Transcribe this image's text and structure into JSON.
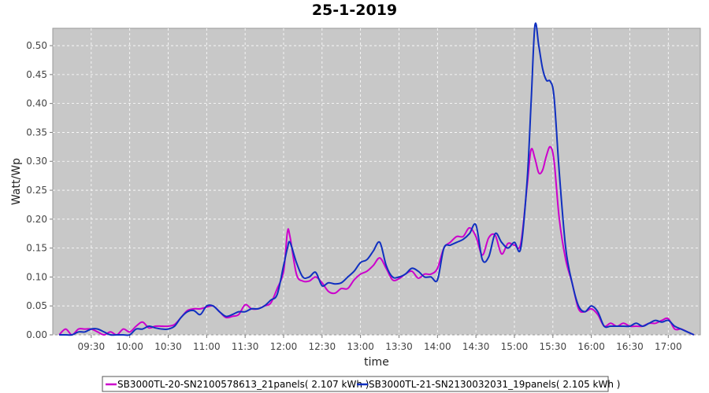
{
  "chart_data": {
    "type": "line",
    "title": "25-1-2019",
    "xlabel": "time",
    "ylabel": "Watt/Wp",
    "xlim": [
      "09:00",
      "17:25"
    ],
    "ylim": [
      0,
      0.53
    ],
    "x_ticks": [
      "09:30",
      "10:00",
      "10:30",
      "11:00",
      "11:30",
      "12:00",
      "12:30",
      "13:00",
      "13:30",
      "14:00",
      "14:30",
      "15:00",
      "15:30",
      "16:00",
      "16:30",
      "17:00"
    ],
    "y_ticks": [
      "0.00",
      "0.05",
      "0.10",
      "0.15",
      "0.20",
      "0.25",
      "0.30",
      "0.35",
      "0.40",
      "0.45",
      "0.50"
    ],
    "grid": true,
    "legend_position": "bottom",
    "series": [
      {
        "name": "SB3000TL-20-SN2100578613_21panels( 2.107 kWh )",
        "color": "#cc00cc",
        "x": [
          "09:05",
          "09:10",
          "09:15",
          "09:20",
          "09:25",
          "09:30",
          "09:35",
          "09:40",
          "09:45",
          "09:50",
          "09:55",
          "10:00",
          "10:05",
          "10:10",
          "10:15",
          "10:20",
          "10:25",
          "10:30",
          "10:35",
          "10:40",
          "10:45",
          "10:50",
          "10:55",
          "11:00",
          "11:05",
          "11:10",
          "11:15",
          "11:20",
          "11:25",
          "11:30",
          "11:35",
          "11:40",
          "11:45",
          "11:50",
          "11:55",
          "12:00",
          "12:03",
          "12:05",
          "12:10",
          "12:15",
          "12:20",
          "12:25",
          "12:30",
          "12:35",
          "12:40",
          "12:45",
          "12:50",
          "12:55",
          "13:00",
          "13:05",
          "13:10",
          "13:15",
          "13:20",
          "13:25",
          "13:30",
          "13:35",
          "13:40",
          "13:45",
          "13:50",
          "13:55",
          "14:00",
          "14:05",
          "14:10",
          "14:15",
          "14:20",
          "14:25",
          "14:30",
          "14:35",
          "14:40",
          "14:45",
          "14:50",
          "14:55",
          "15:00",
          "15:05",
          "15:10",
          "15:13",
          "15:16",
          "15:19",
          "15:22",
          "15:25",
          "15:28",
          "15:31",
          "15:35",
          "15:40",
          "15:45",
          "15:50",
          "15:55",
          "16:00",
          "16:05",
          "16:10",
          "16:15",
          "16:20",
          "16:25",
          "16:30",
          "16:35",
          "16:40",
          "16:45",
          "16:50",
          "16:55",
          "17:00",
          "17:05",
          "17:10",
          "17:15",
          "17:20"
        ],
        "values": [
          0.0,
          0.01,
          0.0,
          0.01,
          0.01,
          0.01,
          0.005,
          0.0,
          0.005,
          0.0,
          0.01,
          0.005,
          0.015,
          0.022,
          0.012,
          0.015,
          0.015,
          0.015,
          0.018,
          0.03,
          0.042,
          0.045,
          0.045,
          0.048,
          0.05,
          0.04,
          0.03,
          0.032,
          0.035,
          0.052,
          0.045,
          0.045,
          0.05,
          0.055,
          0.08,
          0.11,
          0.178,
          0.17,
          0.105,
          0.093,
          0.093,
          0.1,
          0.09,
          0.075,
          0.072,
          0.08,
          0.08,
          0.095,
          0.105,
          0.11,
          0.12,
          0.133,
          0.115,
          0.095,
          0.097,
          0.105,
          0.11,
          0.098,
          0.105,
          0.105,
          0.115,
          0.15,
          0.16,
          0.17,
          0.17,
          0.185,
          0.17,
          0.138,
          0.168,
          0.172,
          0.14,
          0.158,
          0.155,
          0.158,
          0.26,
          0.32,
          0.305,
          0.28,
          0.285,
          0.31,
          0.325,
          0.3,
          0.2,
          0.13,
          0.09,
          0.045,
          0.04,
          0.045,
          0.035,
          0.015,
          0.02,
          0.015,
          0.02,
          0.015,
          0.015,
          0.015,
          0.02,
          0.02,
          0.025,
          0.028,
          0.01,
          0.01,
          0.005,
          0.0
        ]
      },
      {
        "name": "SB3000TL-21-SN2130032031_19panels( 2.105 kWh )",
        "color": "#1030c0",
        "x": [
          "09:05",
          "09:10",
          "09:15",
          "09:20",
          "09:25",
          "09:30",
          "09:35",
          "09:40",
          "09:45",
          "09:50",
          "09:55",
          "10:00",
          "10:05",
          "10:10",
          "10:15",
          "10:20",
          "10:25",
          "10:30",
          "10:35",
          "10:40",
          "10:45",
          "10:50",
          "10:55",
          "11:00",
          "11:05",
          "11:10",
          "11:15",
          "11:20",
          "11:25",
          "11:30",
          "11:35",
          "11:40",
          "11:45",
          "11:50",
          "11:55",
          "12:00",
          "12:03",
          "12:05",
          "12:10",
          "12:15",
          "12:20",
          "12:25",
          "12:30",
          "12:35",
          "12:40",
          "12:45",
          "12:50",
          "12:55",
          "13:00",
          "13:05",
          "13:10",
          "13:15",
          "13:20",
          "13:25",
          "13:30",
          "13:35",
          "13:40",
          "13:45",
          "13:50",
          "13:55",
          "14:00",
          "14:05",
          "14:10",
          "14:15",
          "14:20",
          "14:25",
          "14:30",
          "14:35",
          "14:40",
          "14:45",
          "14:50",
          "14:55",
          "15:00",
          "15:05",
          "15:10",
          "15:13",
          "15:16",
          "15:19",
          "15:22",
          "15:25",
          "15:28",
          "15:31",
          "15:35",
          "15:40",
          "15:45",
          "15:50",
          "15:55",
          "16:00",
          "16:05",
          "16:10",
          "16:15",
          "16:20",
          "16:25",
          "16:30",
          "16:35",
          "16:40",
          "16:45",
          "16:50",
          "16:55",
          "17:00",
          "17:05",
          "17:10",
          "17:15",
          "17:20"
        ],
        "values": [
          0.0,
          0.0,
          0.0,
          0.005,
          0.005,
          0.01,
          0.01,
          0.005,
          0.0,
          0.0,
          0.0,
          0.0,
          0.01,
          0.01,
          0.015,
          0.012,
          0.01,
          0.01,
          0.015,
          0.03,
          0.04,
          0.042,
          0.035,
          0.05,
          0.05,
          0.04,
          0.032,
          0.035,
          0.04,
          0.04,
          0.045,
          0.045,
          0.05,
          0.06,
          0.07,
          0.12,
          0.15,
          0.16,
          0.125,
          0.1,
          0.1,
          0.108,
          0.085,
          0.09,
          0.088,
          0.09,
          0.1,
          0.11,
          0.125,
          0.13,
          0.145,
          0.16,
          0.12,
          0.1,
          0.1,
          0.105,
          0.115,
          0.11,
          0.1,
          0.1,
          0.095,
          0.15,
          0.155,
          0.16,
          0.165,
          0.175,
          0.19,
          0.13,
          0.135,
          0.175,
          0.16,
          0.15,
          0.16,
          0.15,
          0.27,
          0.4,
          0.535,
          0.5,
          0.46,
          0.44,
          0.438,
          0.41,
          0.28,
          0.15,
          0.09,
          0.05,
          0.04,
          0.05,
          0.04,
          0.015,
          0.015,
          0.015,
          0.015,
          0.015,
          0.02,
          0.015,
          0.02,
          0.025,
          0.022,
          0.025,
          0.015,
          0.01,
          0.005,
          0.0
        ]
      }
    ]
  }
}
